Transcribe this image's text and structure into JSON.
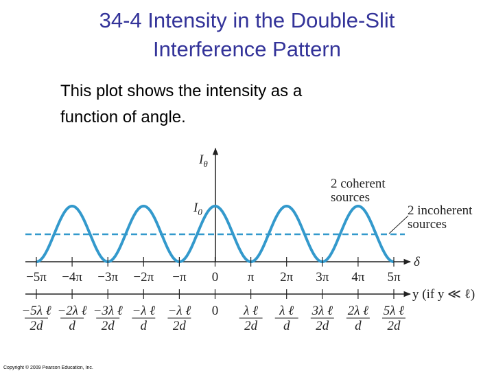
{
  "slide": {
    "title_lines": [
      "34-4 Intensity in the Double-Slit",
      "Interference Pattern"
    ],
    "body_lines": [
      "This plot shows the intensity as a",
      "function of angle."
    ],
    "copyright": "Copyright © 2009 Pearson Education, Inc."
  },
  "figure": {
    "vertical_axis": {
      "symbol": "I",
      "subscript": "θ"
    },
    "level_label": {
      "symbol": "I",
      "subscript": "0"
    },
    "coherent_label": [
      "2 coherent",
      "sources"
    ],
    "incoherent_label": [
      "2 incoherent",
      "sources"
    ],
    "delta_axis_label": "δ",
    "y_axis_label": "y (if y ≪ ℓ)",
    "delta_ticks": [
      "−5π",
      "−4π",
      "−3π",
      "−2π",
      "−π",
      "0",
      "π",
      "2π",
      "3π",
      "4π",
      "5π"
    ],
    "y_ticks": [
      {
        "num": "−5λ ℓ",
        "den": "2d"
      },
      {
        "num": "−2λ ℓ",
        "den": "d"
      },
      {
        "num": "−3λ ℓ",
        "den": "2d"
      },
      {
        "num": "−λ ℓ",
        "den": "d"
      },
      {
        "num": "−λ ℓ",
        "den": "2d"
      },
      {
        "num": "0"
      },
      {
        "num": "λ ℓ",
        "den": "2d"
      },
      {
        "num": "λ ℓ",
        "den": "d"
      },
      {
        "num": "3λ ℓ",
        "den": "2d"
      },
      {
        "num": "2λ ℓ",
        "den": "d"
      },
      {
        "num": "5λ ℓ",
        "den": "2d"
      }
    ]
  }
}
